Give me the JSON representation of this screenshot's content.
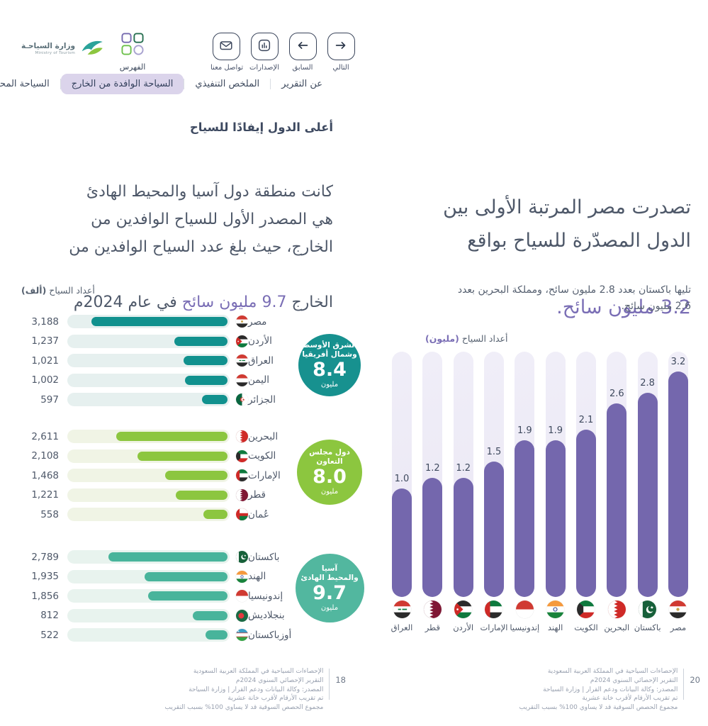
{
  "header": {
    "logo_title_ar": "وزارة السياحـة",
    "logo_subtitle_en": "Ministry of Tourism",
    "index_label": "الفهرس",
    "nav_buttons": [
      {
        "id": "contact",
        "label": "تواصل معنا",
        "icon": "envelope-icon"
      },
      {
        "id": "releases",
        "label": "الإصدارات",
        "icon": "releases-chart-icon"
      },
      {
        "id": "previous",
        "label": "السابق",
        "icon": "arrow-left-icon"
      },
      {
        "id": "next",
        "label": "التالي",
        "icon": "arrow-right-icon"
      }
    ],
    "tabs": [
      {
        "id": "about-report",
        "label": "عن التقرير",
        "active": false
      },
      {
        "id": "executive-summary",
        "label": "الملخص التنفيذي",
        "active": false
      },
      {
        "id": "inbound-tourism",
        "label": "السياحة الوافدة من الخارج",
        "active": true
      },
      {
        "id": "domestic-tourism",
        "label": "السياحة المحلية",
        "active": false
      }
    ]
  },
  "left_page": {
    "section_title": "أعلى الدول إيفادًا للسياح",
    "paragraph_text": "كانت منطقة دول آسيا والمحيط الهادئ\nهي المصدر الأول للسياح الوافدين من\nالخارج، حيث بلغ عدد السياح الوافدين من",
    "paragraph_tail": {
      "pre": "الخارج ",
      "highlight": "9.7 مليون سائح",
      "post": " في عام 2024م"
    },
    "axis_label": "أعداد السياح ",
    "axis_unit": "(ألف)"
  },
  "right_page": {
    "heading_text": "تصدرت مصر المرتبة الأولى بين\nالدول المصدّرة للسياح بواقع",
    "heading_highlight": "3.2 مليون سائح.",
    "subtext": "تليها باكستان بعدد 2.8 مليون سائح، ومملكة البحرين بعدد\n2.6 مليون سائح.",
    "axis_label": "أعداد السياح ",
    "axis_unit": "(مليون)"
  },
  "chart_data": [
    {
      "type": "bar",
      "orientation": "horizontal",
      "title": "أعلى الدول إيفادًا للسياح",
      "value_axis_label": "أعداد السياح (ألف)",
      "unit": "thousand tourists",
      "xmax": 3800,
      "groups": [
        {
          "region": "الشرق الأوسط وشمال أفريقيا",
          "region_lines": "الشرق الأوسط\nوشمال أفريقيا",
          "total_value": "8.4",
          "total_unit": "مليون",
          "bar_color": "#11918e",
          "track_color": "#e6f0ef",
          "badge_color": "#17918f",
          "rows": [
            {
              "country": "مصر",
              "flag": "egypt",
              "value": 3188,
              "label": "3,188"
            },
            {
              "country": "الأردن",
              "flag": "jordan",
              "value": 1237,
              "label": "1,237"
            },
            {
              "country": "العراق",
              "flag": "iraq",
              "value": 1021,
              "label": "1,021"
            },
            {
              "country": "اليمن",
              "flag": "yemen",
              "value": 1002,
              "label": "1,002"
            },
            {
              "country": "الجزائر",
              "flag": "algeria",
              "value": 597,
              "label": "597"
            }
          ]
        },
        {
          "region": "دول مجلس التعاون",
          "region_lines": "دول مجلس\nالتعاون",
          "total_value": "8.0",
          "total_unit": "مليون",
          "bar_color": "#8cc63f",
          "track_color": "#f0f4e5",
          "badge_color": "#8cc63f",
          "rows": [
            {
              "country": "البحرين",
              "flag": "bahrain",
              "value": 2611,
              "label": "2,611"
            },
            {
              "country": "الكويت",
              "flag": "kuwait",
              "value": 2108,
              "label": "2,108"
            },
            {
              "country": "الإمارات",
              "flag": "uae",
              "value": 1468,
              "label": "1,468"
            },
            {
              "country": "قطر",
              "flag": "qatar",
              "value": 1221,
              "label": "1,221"
            },
            {
              "country": "عُمان",
              "flag": "oman",
              "value": 558,
              "label": "558"
            }
          ]
        },
        {
          "region": "آسيا والمحيط الهادئ",
          "region_lines": "آسيا\nوالمحيط الهادئ",
          "total_value": "9.7",
          "total_unit": "مليون",
          "bar_color": "#48b49b",
          "track_color": "#e8f3ee",
          "badge_color": "#52b79f",
          "rows": [
            {
              "country": "باكستان",
              "flag": "pakistan",
              "value": 2789,
              "label": "2,789"
            },
            {
              "country": "الهند",
              "flag": "india",
              "value": 1935,
              "label": "1,935"
            },
            {
              "country": "إندونيسيا",
              "flag": "indonesia",
              "value": 1856,
              "label": "1,856"
            },
            {
              "country": "بنجلاديش",
              "flag": "bangladesh",
              "value": 812,
              "label": "812"
            },
            {
              "country": "أوزباكستان",
              "flag": "uzbekistan",
              "value": 522,
              "label": "522"
            }
          ]
        }
      ]
    },
    {
      "type": "bar",
      "orientation": "vertical",
      "value_axis_label": "أعداد السياح (مليون)",
      "unit": "million tourists",
      "ymax": 3.5,
      "bar_color": "#7467ad",
      "track_color": "#edebf6",
      "columns": [
        {
          "country": "العراق",
          "flag": "iraq",
          "value": 1.0,
          "label": "1.0"
        },
        {
          "country": "قطر",
          "flag": "qatar",
          "value": 1.2,
          "label": "1.2"
        },
        {
          "country": "الأردن",
          "flag": "jordan",
          "value": 1.2,
          "label": "1.2"
        },
        {
          "country": "الإمارات",
          "flag": "uae",
          "value": 1.5,
          "label": "1.5"
        },
        {
          "country": "إندونيسيا",
          "flag": "indonesia",
          "value": 1.9,
          "label": "1.9"
        },
        {
          "country": "الهند",
          "flag": "india",
          "value": 1.9,
          "label": "1.9"
        },
        {
          "country": "الكويت",
          "flag": "kuwait",
          "value": 2.1,
          "label": "2.1"
        },
        {
          "country": "البحرين",
          "flag": "bahrain",
          "value": 2.6,
          "label": "2.6"
        },
        {
          "country": "باكستان",
          "flag": "pakistan",
          "value": 2.8,
          "label": "2.8"
        },
        {
          "country": "مصر",
          "flag": "egypt",
          "value": 3.2,
          "label": "3.2"
        }
      ]
    }
  ],
  "footer": {
    "source_lines": [
      "الإحصاءات السياحية في المملكة العربية السعودية",
      "التقرير الإحصائي السنوي 2024م",
      "المصدر: وكالة البيانات ودعم القرار | وزارة السياحة",
      "تم تقريب الأرقام لأقرب خانة عشرية",
      "مجموع الحصص السوقية قد لا يساوي 100% بسبب التقريب"
    ],
    "left_page_number": "18",
    "right_page_number": "20"
  },
  "colors": {
    "text_slate": "#4e5869",
    "accent_purple": "#7a6eb5",
    "teal_dark": "#11918e",
    "green_light": "#8cc63f",
    "teal_medium": "#48b49b",
    "bar_purple": "#7467ad",
    "tab_active_bg": "#dbd4eb"
  }
}
